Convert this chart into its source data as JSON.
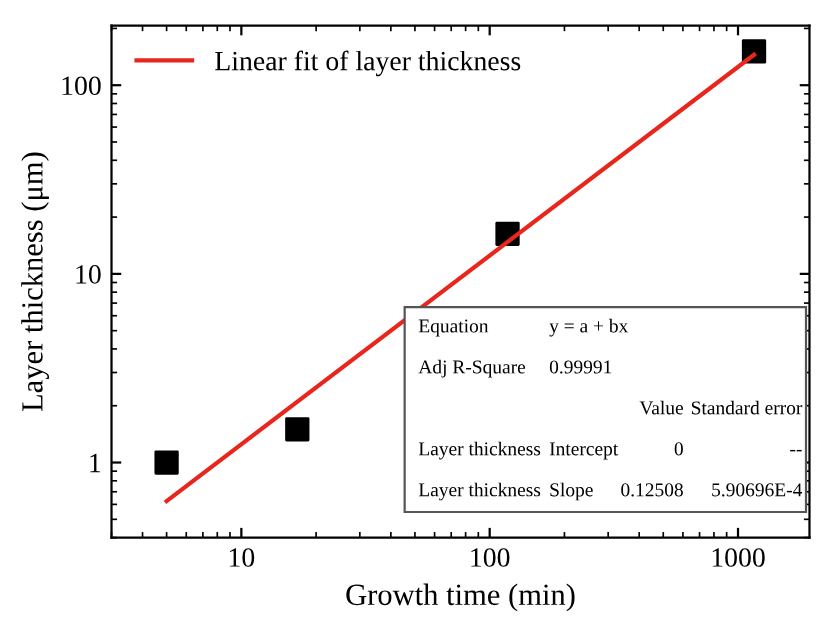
{
  "chart_data": {
    "type": "scatter",
    "xlabel": "Growth time (min)",
    "ylabel": "Layer thickness (μm)",
    "log": "xy",
    "xlim": [
      3,
      1940
    ],
    "ylim": [
      0.4,
      207
    ],
    "xticks": [
      10,
      100,
      1000
    ],
    "yticks": [
      1,
      10,
      100
    ],
    "grid": false,
    "legend": "top left",
    "marker": "square",
    "series": [
      {
        "x": [
          5,
          16.8,
          118,
          1160
        ],
        "values": [
          1.0,
          1.5,
          16.3,
          151
        ],
        "color": "#000000"
      },
      {
        "type": "line",
        "name": "Linear fit of layer thickness",
        "x": [
          5,
          1160
        ],
        "values": [
          0.625,
          145
        ],
        "color": "#e8261c",
        "marker": "none"
      }
    ],
    "annotations": [
      "Equation",
      "y = a + bx",
      "Adj R-Square",
      "0.99991",
      "Value",
      "Standard error",
      "Layer thickness",
      "Intercept",
      "0",
      "--",
      "Layer thickness",
      "Slope",
      "0.12508",
      "5.90696E-4"
    ]
  }
}
